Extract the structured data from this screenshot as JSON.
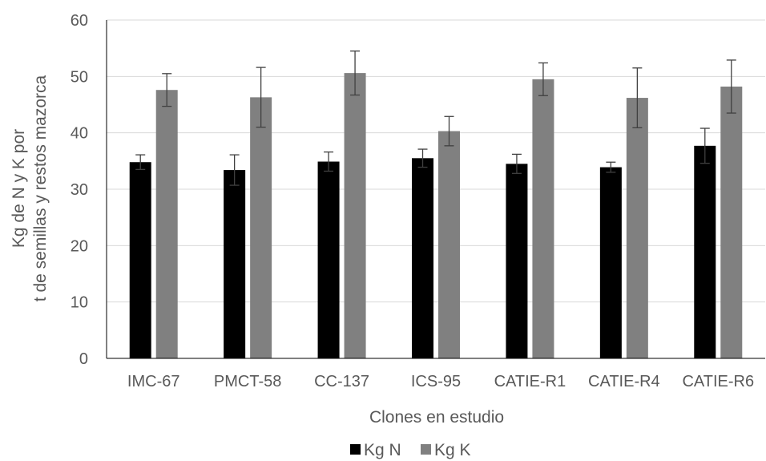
{
  "chart_data": {
    "type": "bar",
    "title": "",
    "xlabel": "Clones en estudio",
    "ylabel_lines": [
      "Kg  de N y K  por",
      "t de semillas y restos mazorca"
    ],
    "ylim": [
      0,
      60
    ],
    "yticks": [
      0,
      10,
      20,
      30,
      40,
      50,
      60
    ],
    "grid": true,
    "legend_position": "bottom",
    "categories": [
      "IMC-67",
      "PMCT-58",
      "CC-137",
      "ICS-95",
      "CATIE-R1",
      "CATIE-R4",
      "CATIE-R6"
    ],
    "series": [
      {
        "name": "Kg N",
        "color": "#000000",
        "values": [
          34.8,
          33.4,
          34.9,
          35.5,
          34.5,
          33.9,
          37.7
        ],
        "errors": [
          1.3,
          2.7,
          1.7,
          1.6,
          1.7,
          0.9,
          3.1
        ]
      },
      {
        "name": "Kg K",
        "color": "#808080",
        "values": [
          47.6,
          46.3,
          50.6,
          40.3,
          49.5,
          46.2,
          48.2
        ],
        "errors": [
          2.9,
          5.3,
          3.9,
          2.6,
          2.9,
          5.3,
          4.7
        ]
      }
    ]
  }
}
